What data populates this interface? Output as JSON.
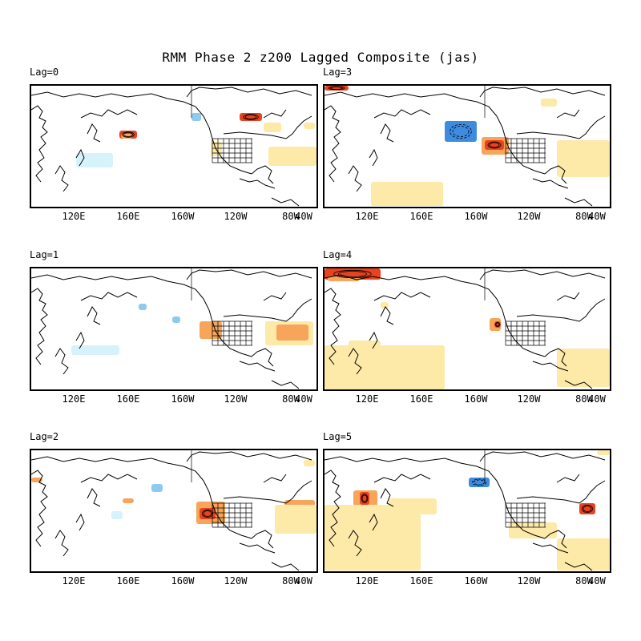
{
  "title": "RMM Phase 2 z200 Lagged Composite (jas)",
  "lon_ticks": [
    "120E",
    "160E",
    "160W",
    "120W",
    "80W",
    "40W"
  ],
  "colors": {
    "pos_light": "#fde9a8",
    "pos_medium": "#f6a55a",
    "pos_strong": "#e8431e",
    "neg_light": "#d6f3fb",
    "neg_medium": "#8ec9f0",
    "neg_strong": "#3d8ce0"
  },
  "panels": [
    {
      "label": "Lag=0"
    },
    {
      "label": "Lag=3"
    },
    {
      "label": "Lag=1"
    },
    {
      "label": "Lag=4"
    },
    {
      "label": "Lag=2"
    },
    {
      "label": "Lag=5"
    }
  ]
}
